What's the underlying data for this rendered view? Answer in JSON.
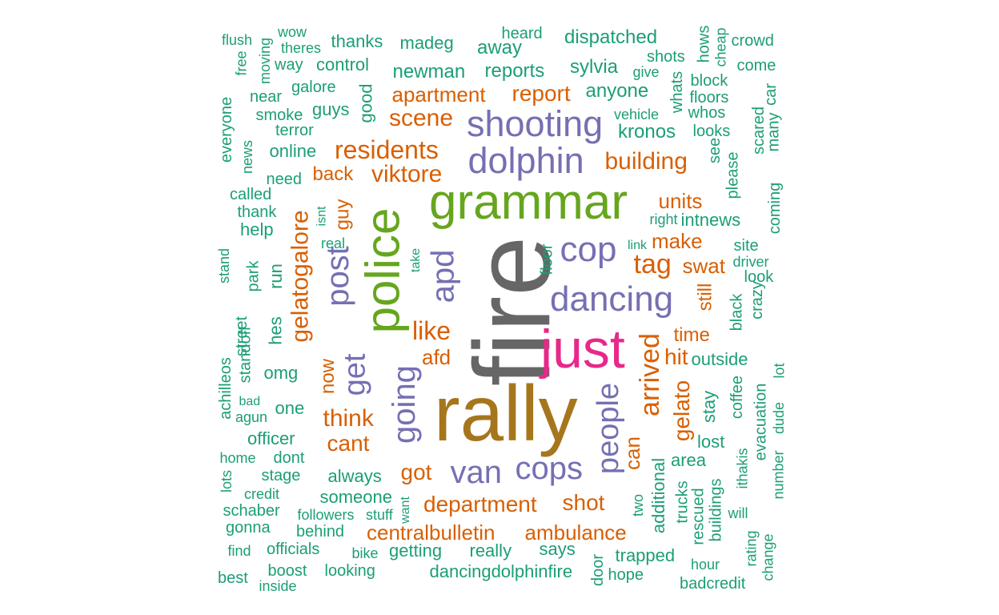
{
  "colors": {
    "gray": "#666666",
    "olive": "#a6761d",
    "magenta": "#e7298a",
    "green": "#66a61e",
    "purple": "#7570b3",
    "orange": "#d95f02",
    "teal": "#1b9e77"
  },
  "words": [
    {
      "text": "fire",
      "color": "gray"
    },
    {
      "text": "rally",
      "color": "olive"
    },
    {
      "text": "just",
      "color": "magenta"
    },
    {
      "text": "grammar",
      "color": "green"
    },
    {
      "text": "police",
      "color": "green"
    },
    {
      "text": "shooting",
      "color": "purple"
    },
    {
      "text": "dolphin",
      "color": "purple"
    },
    {
      "text": "dancing",
      "color": "purple"
    },
    {
      "text": "cop",
      "color": "purple"
    },
    {
      "text": "apd",
      "color": "purple"
    },
    {
      "text": "post",
      "color": "purple"
    },
    {
      "text": "going",
      "color": "purple"
    },
    {
      "text": "van",
      "color": "purple"
    },
    {
      "text": "cops",
      "color": "purple"
    },
    {
      "text": "people",
      "color": "purple"
    },
    {
      "text": "get",
      "color": "purple"
    },
    {
      "text": "arrived",
      "color": "orange"
    },
    {
      "text": "residents",
      "color": "orange"
    },
    {
      "text": "scene",
      "color": "orange"
    },
    {
      "text": "viktore",
      "color": "orange"
    },
    {
      "text": "building",
      "color": "orange"
    },
    {
      "text": "gelatogalore",
      "color": "orange"
    },
    {
      "text": "tag",
      "color": "orange"
    },
    {
      "text": "like",
      "color": "orange"
    },
    {
      "text": "think",
      "color": "orange"
    },
    {
      "text": "cant",
      "color": "orange"
    },
    {
      "text": "got",
      "color": "orange"
    },
    {
      "text": "department",
      "color": "orange"
    },
    {
      "text": "shot",
      "color": "orange"
    },
    {
      "text": "ambulance",
      "color": "orange"
    },
    {
      "text": "centralbulletin",
      "color": "orange"
    },
    {
      "text": "gelato",
      "color": "orange"
    },
    {
      "text": "hit",
      "color": "orange"
    },
    {
      "text": "can",
      "color": "orange"
    },
    {
      "text": "apartment",
      "color": "orange"
    },
    {
      "text": "report",
      "color": "orange"
    },
    {
      "text": "units",
      "color": "orange"
    },
    {
      "text": "make",
      "color": "orange"
    },
    {
      "text": "swat",
      "color": "orange"
    },
    {
      "text": "back",
      "color": "orange"
    },
    {
      "text": "guy",
      "color": "orange"
    },
    {
      "text": "now",
      "color": "orange"
    },
    {
      "text": "afd",
      "color": "orange"
    },
    {
      "text": "time",
      "color": "orange"
    },
    {
      "text": "still",
      "color": "orange"
    },
    {
      "text": "newman",
      "color": "teal"
    },
    {
      "text": "reports",
      "color": "teal"
    },
    {
      "text": "sylvia",
      "color": "teal"
    },
    {
      "text": "anyone",
      "color": "teal"
    },
    {
      "text": "dispatched",
      "color": "teal"
    },
    {
      "text": "away",
      "color": "teal"
    },
    {
      "text": "heard",
      "color": "teal"
    },
    {
      "text": "madeg",
      "color": "teal"
    },
    {
      "text": "thanks",
      "color": "teal"
    },
    {
      "text": "control",
      "color": "teal"
    },
    {
      "text": "galore",
      "color": "teal"
    },
    {
      "text": "guys",
      "color": "teal"
    },
    {
      "text": "good",
      "color": "teal"
    },
    {
      "text": "kronos",
      "color": "teal"
    },
    {
      "text": "vehicle",
      "color": "teal"
    },
    {
      "text": "give",
      "color": "teal"
    },
    {
      "text": "shots",
      "color": "teal"
    },
    {
      "text": "whats",
      "color": "teal"
    },
    {
      "text": "block",
      "color": "teal"
    },
    {
      "text": "floors",
      "color": "teal"
    },
    {
      "text": "whos",
      "color": "teal"
    },
    {
      "text": "looks",
      "color": "teal"
    },
    {
      "text": "hows",
      "color": "teal"
    },
    {
      "text": "cheap",
      "color": "teal"
    },
    {
      "text": "crowd",
      "color": "teal"
    },
    {
      "text": "come",
      "color": "teal"
    },
    {
      "text": "car",
      "color": "teal"
    },
    {
      "text": "many",
      "color": "teal"
    },
    {
      "text": "scared",
      "color": "teal"
    },
    {
      "text": "see",
      "color": "teal"
    },
    {
      "text": "please",
      "color": "teal"
    },
    {
      "text": "coming",
      "color": "teal"
    },
    {
      "text": "intnews",
      "color": "teal"
    },
    {
      "text": "right",
      "color": "teal"
    },
    {
      "text": "site",
      "color": "teal"
    },
    {
      "text": "link",
      "color": "teal"
    },
    {
      "text": "driver",
      "color": "teal"
    },
    {
      "text": "look",
      "color": "teal"
    },
    {
      "text": "black",
      "color": "teal"
    },
    {
      "text": "crazy",
      "color": "teal"
    },
    {
      "text": "floor",
      "color": "teal"
    },
    {
      "text": "outside",
      "color": "teal"
    },
    {
      "text": "lot",
      "color": "teal"
    },
    {
      "text": "coffee",
      "color": "teal"
    },
    {
      "text": "stay",
      "color": "teal"
    },
    {
      "text": "evacuation",
      "color": "teal"
    },
    {
      "text": "dude",
      "color": "teal"
    },
    {
      "text": "lost",
      "color": "teal"
    },
    {
      "text": "area",
      "color": "teal"
    },
    {
      "text": "ithakis",
      "color": "teal"
    },
    {
      "text": "number",
      "color": "teal"
    },
    {
      "text": "additional",
      "color": "teal"
    },
    {
      "text": "trucks",
      "color": "teal"
    },
    {
      "text": "rescued",
      "color": "teal"
    },
    {
      "text": "buildings",
      "color": "teal"
    },
    {
      "text": "will",
      "color": "teal"
    },
    {
      "text": "rating",
      "color": "teal"
    },
    {
      "text": "change",
      "color": "teal"
    },
    {
      "text": "two",
      "color": "teal"
    },
    {
      "text": "says",
      "color": "teal"
    },
    {
      "text": "trapped",
      "color": "teal"
    },
    {
      "text": "hope",
      "color": "teal"
    },
    {
      "text": "door",
      "color": "teal"
    },
    {
      "text": "hour",
      "color": "teal"
    },
    {
      "text": "badcredit",
      "color": "teal"
    },
    {
      "text": "really",
      "color": "teal"
    },
    {
      "text": "getting",
      "color": "teal"
    },
    {
      "text": "dancingdolphinfire",
      "color": "teal"
    },
    {
      "text": "bike",
      "color": "teal"
    },
    {
      "text": "looking",
      "color": "teal"
    },
    {
      "text": "boost",
      "color": "teal"
    },
    {
      "text": "inside",
      "color": "teal"
    },
    {
      "text": "best",
      "color": "teal"
    },
    {
      "text": "find",
      "color": "teal"
    },
    {
      "text": "officials",
      "color": "teal"
    },
    {
      "text": "behind",
      "color": "teal"
    },
    {
      "text": "gonna",
      "color": "teal"
    },
    {
      "text": "followers",
      "color": "teal"
    },
    {
      "text": "stuff",
      "color": "teal"
    },
    {
      "text": "want",
      "color": "teal"
    },
    {
      "text": "schaber",
      "color": "teal"
    },
    {
      "text": "someone",
      "color": "teal"
    },
    {
      "text": "credit",
      "color": "teal"
    },
    {
      "text": "lots",
      "color": "teal"
    },
    {
      "text": "stage",
      "color": "teal"
    },
    {
      "text": "always",
      "color": "teal"
    },
    {
      "text": "home",
      "color": "teal"
    },
    {
      "text": "dont",
      "color": "teal"
    },
    {
      "text": "officer",
      "color": "teal"
    },
    {
      "text": "agun",
      "color": "teal"
    },
    {
      "text": "bad",
      "color": "teal"
    },
    {
      "text": "one",
      "color": "teal"
    },
    {
      "text": "achilleos",
      "color": "teal"
    },
    {
      "text": "street",
      "color": "teal"
    },
    {
      "text": "omg",
      "color": "teal"
    },
    {
      "text": "standoff",
      "color": "teal"
    },
    {
      "text": "hes",
      "color": "teal"
    },
    {
      "text": "stand",
      "color": "teal"
    },
    {
      "text": "park",
      "color": "teal"
    },
    {
      "text": "run",
      "color": "teal"
    },
    {
      "text": "help",
      "color": "teal"
    },
    {
      "text": "thank",
      "color": "teal"
    },
    {
      "text": "called",
      "color": "teal"
    },
    {
      "text": "need",
      "color": "teal"
    },
    {
      "text": "isnt",
      "color": "teal"
    },
    {
      "text": "real",
      "color": "teal"
    },
    {
      "text": "take",
      "color": "teal"
    },
    {
      "text": "online",
      "color": "teal"
    },
    {
      "text": "news",
      "color": "teal"
    },
    {
      "text": "everyone",
      "color": "teal"
    },
    {
      "text": "terror",
      "color": "teal"
    },
    {
      "text": "smoke",
      "color": "teal"
    },
    {
      "text": "near",
      "color": "teal"
    },
    {
      "text": "way",
      "color": "teal"
    },
    {
      "text": "moving",
      "color": "teal"
    },
    {
      "text": "free",
      "color": "teal"
    },
    {
      "text": "flush",
      "color": "teal"
    },
    {
      "text": "wow",
      "color": "teal"
    },
    {
      "text": "theres",
      "color": "teal"
    }
  ]
}
